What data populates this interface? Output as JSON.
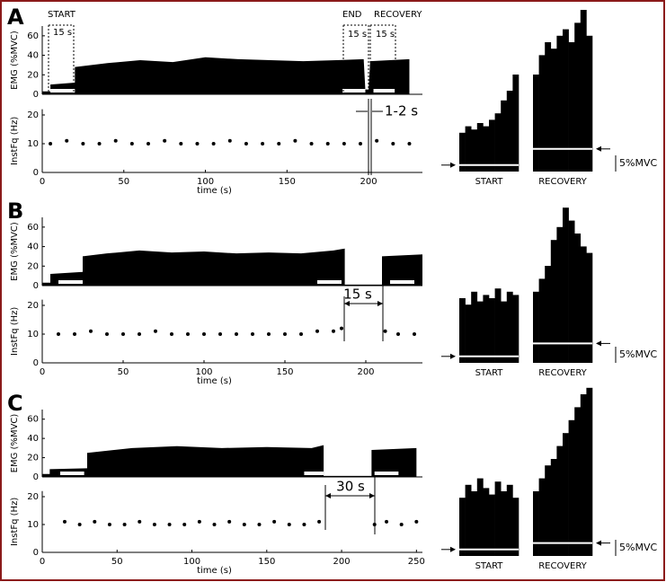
{
  "chart_data": [
    {
      "type": "line",
      "label": "A",
      "xlabel": "time (s)",
      "xlim": [
        0,
        233
      ],
      "xticks": [
        0,
        50,
        100,
        150,
        200
      ],
      "emg": {
        "ylabel": "EMG (%MVC)",
        "ylim": [
          0,
          70
        ],
        "yticks": [
          0,
          20,
          40,
          60
        ],
        "x": [
          0,
          5,
          5,
          20,
          20,
          40,
          60,
          80,
          100,
          120,
          140,
          160,
          180,
          197,
          198,
          200,
          201,
          225
        ],
        "values": [
          3,
          3,
          10,
          12,
          28,
          32,
          35,
          33,
          38,
          36,
          35,
          34,
          35,
          36,
          5,
          5,
          34,
          36
        ],
        "windows": [
          [
            5,
            20
          ],
          [
            184,
            198
          ],
          [
            203,
            216
          ]
        ]
      },
      "fq": {
        "ylabel": "InstFq (Hz)",
        "ylim": [
          0,
          22
        ],
        "yticks": [
          0,
          10,
          20
        ],
        "x": [
          5,
          15,
          25,
          35,
          45,
          55,
          65,
          75,
          85,
          95,
          105,
          115,
          125,
          135,
          145,
          155,
          165,
          175,
          185,
          195,
          205,
          215,
          225
        ],
        "values": [
          10,
          11,
          10,
          10,
          11,
          10,
          10,
          11,
          10,
          10,
          10,
          11,
          10,
          10,
          10,
          11,
          10,
          10,
          10,
          10,
          11,
          10,
          10
        ]
      },
      "annotations": [
        "START",
        "END",
        "RECOVERY",
        "15 s",
        "15 s",
        "15 s",
        "1-2 s"
      ],
      "insets": [
        {
          "label": "START",
          "level": 2,
          "values": [
            12,
            14,
            13,
            15,
            14,
            16,
            18,
            22,
            25,
            30
          ]
        },
        {
          "label": "RECOVERY",
          "level": 7,
          "values": [
            30,
            36,
            40,
            38,
            42,
            44,
            40,
            46,
            50,
            42
          ]
        }
      ],
      "scale": {
        "label": "5%MVC",
        "value": 5
      }
    },
    {
      "type": "line",
      "label": "B",
      "xlabel": "time (s)",
      "xlim": [
        0,
        235
      ],
      "xticks": [
        0,
        50,
        100,
        150,
        200
      ],
      "emg": {
        "ylabel": "EMG (%MVC)",
        "ylim": [
          0,
          70
        ],
        "yticks": [
          0,
          20,
          40,
          60
        ],
        "x": [
          0,
          5,
          5,
          25,
          25,
          40,
          60,
          80,
          100,
          120,
          140,
          160,
          180,
          187,
          187,
          210,
          210,
          235
        ],
        "values": [
          3,
          3,
          12,
          14,
          30,
          33,
          36,
          34,
          35,
          33,
          34,
          33,
          36,
          38,
          1,
          1,
          30,
          32
        ],
        "windows": [
          [
            10,
            25
          ],
          [
            170,
            185
          ],
          [
            215,
            230
          ]
        ]
      },
      "fq": {
        "ylabel": "InstFq (Hz)",
        "ylim": [
          0,
          22
        ],
        "yticks": [
          0,
          10,
          20
        ],
        "x": [
          10,
          20,
          30,
          40,
          50,
          60,
          70,
          80,
          90,
          100,
          110,
          120,
          130,
          140,
          150,
          160,
          170,
          180,
          185,
          212,
          220,
          230
        ],
        "values": [
          10,
          10,
          11,
          10,
          10,
          10,
          11,
          10,
          10,
          10,
          10,
          10,
          10,
          10,
          10,
          10,
          11,
          11,
          12,
          11,
          10,
          10
        ]
      },
      "annotations": [
        "15 s"
      ],
      "insets": [
        {
          "label": "START",
          "level": 2,
          "values": [
            20,
            18,
            22,
            19,
            21,
            20,
            23,
            19,
            22,
            21
          ]
        },
        {
          "label": "RECOVERY",
          "level": 6,
          "values": [
            22,
            26,
            30,
            38,
            42,
            48,
            44,
            40,
            36,
            34
          ]
        }
      ],
      "scale": {
        "label": "5%MVC",
        "value": 5
      }
    },
    {
      "type": "line",
      "label": "C",
      "xlabel": "time (s)",
      "xlim": [
        0,
        254
      ],
      "xticks": [
        0,
        50,
        100,
        150,
        200,
        250
      ],
      "emg": {
        "ylabel": "EMG (%MVC)",
        "ylim": [
          0,
          70
        ],
        "yticks": [
          0,
          20,
          40,
          60
        ],
        "x": [
          0,
          5,
          5,
          30,
          30,
          60,
          90,
          120,
          150,
          180,
          188,
          188,
          220,
          220,
          250
        ],
        "values": [
          3,
          3,
          8,
          9,
          25,
          30,
          32,
          30,
          31,
          30,
          33,
          1,
          1,
          28,
          30
        ],
        "windows": [
          [
            12,
            28
          ],
          [
            175,
            188
          ],
          [
            222,
            238
          ]
        ]
      },
      "fq": {
        "ylabel": "InstFq (Hz)",
        "ylim": [
          0,
          22
        ],
        "yticks": [
          0,
          10,
          20
        ],
        "x": [
          15,
          25,
          35,
          45,
          55,
          65,
          75,
          85,
          95,
          105,
          115,
          125,
          135,
          145,
          155,
          165,
          175,
          185,
          222,
          230,
          240,
          250
        ],
        "values": [
          11,
          10,
          11,
          10,
          10,
          11,
          10,
          10,
          10,
          11,
          10,
          11,
          10,
          10,
          11,
          10,
          10,
          11,
          10,
          11,
          10,
          11
        ]
      },
      "annotations": [
        "30 s"
      ],
      "insets": [
        {
          "label": "START",
          "level": 2,
          "values": [
            18,
            22,
            20,
            24,
            21,
            19,
            23,
            20,
            22,
            18
          ]
        },
        {
          "label": "RECOVERY",
          "level": 4,
          "values": [
            20,
            24,
            28,
            30,
            34,
            38,
            42,
            46,
            50,
            52
          ]
        }
      ],
      "scale": {
        "label": "5%MVC",
        "value": 5
      }
    }
  ]
}
